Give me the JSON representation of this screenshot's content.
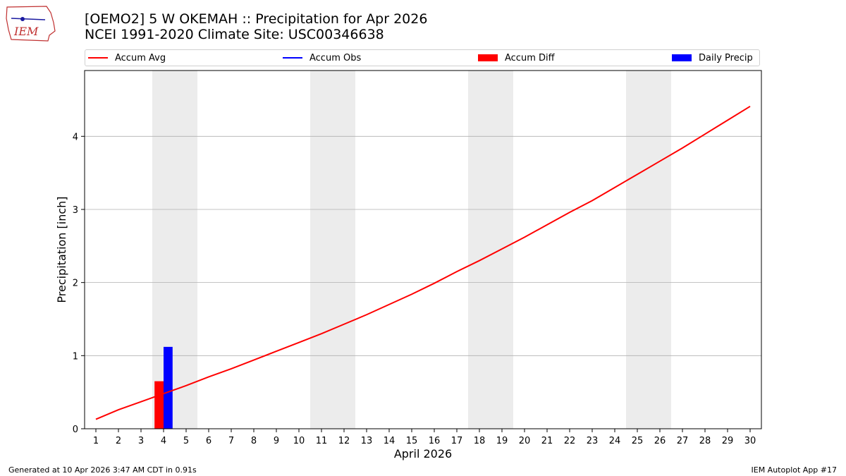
{
  "header": {
    "title": "[OEMO2] 5 W OKEMAH :: Precipitation for Apr 2026",
    "subtitle": "NCEI 1991-2020 Climate Site: USC00346638"
  },
  "logo": {
    "text": "IEM"
  },
  "legend": {
    "items": [
      {
        "label": "Accum Avg",
        "kind": "line",
        "color": "#ff0000"
      },
      {
        "label": "Accum Obs",
        "kind": "line",
        "color": "#0000ff"
      },
      {
        "label": "Accum Diff",
        "kind": "box",
        "color": "#ff0000"
      },
      {
        "label": "Daily Precip",
        "kind": "box",
        "color": "#0000ff"
      }
    ]
  },
  "footer": {
    "left": "Generated at 10 Apr 2026 3:47 AM CDT in 0.91s",
    "right": "IEM Autoplot App #17"
  },
  "chart_data": {
    "type": "line",
    "title": "[OEMO2] 5 W OKEMAH :: Precipitation for Apr 2026",
    "xlabel": "April 2026",
    "ylabel": "Precipitation [inch]",
    "xlim": [
      0.5,
      30.5
    ],
    "ylim": [
      0,
      4.9
    ],
    "yticks": [
      0,
      1,
      2,
      3,
      4
    ],
    "x": [
      1,
      2,
      3,
      4,
      5,
      6,
      7,
      8,
      9,
      10,
      11,
      12,
      13,
      14,
      15,
      16,
      17,
      18,
      19,
      20,
      21,
      22,
      23,
      24,
      25,
      26,
      27,
      28,
      29,
      30
    ],
    "weekend_bands": [
      [
        3.5,
        5.5
      ],
      [
        10.5,
        12.5
      ],
      [
        17.5,
        19.5
      ],
      [
        24.5,
        26.5
      ]
    ],
    "series": [
      {
        "name": "Accum Avg",
        "type": "line",
        "color": "#ff0000",
        "values": [
          0.13,
          0.26,
          0.37,
          0.48,
          0.59,
          0.71,
          0.82,
          0.94,
          1.06,
          1.18,
          1.3,
          1.43,
          1.56,
          1.7,
          1.84,
          1.99,
          2.15,
          2.3,
          2.46,
          2.62,
          2.79,
          2.96,
          3.12,
          3.3,
          3.48,
          3.66,
          3.84,
          4.03,
          4.22,
          4.41
        ]
      },
      {
        "name": "Accum Diff",
        "type": "bar",
        "color": "#ff0000",
        "x": [
          4
        ],
        "values": [
          0.65
        ]
      },
      {
        "name": "Daily Precip",
        "type": "bar",
        "color": "#0000ff",
        "x": [
          4
        ],
        "values": [
          1.12
        ]
      }
    ],
    "grid": "y"
  }
}
